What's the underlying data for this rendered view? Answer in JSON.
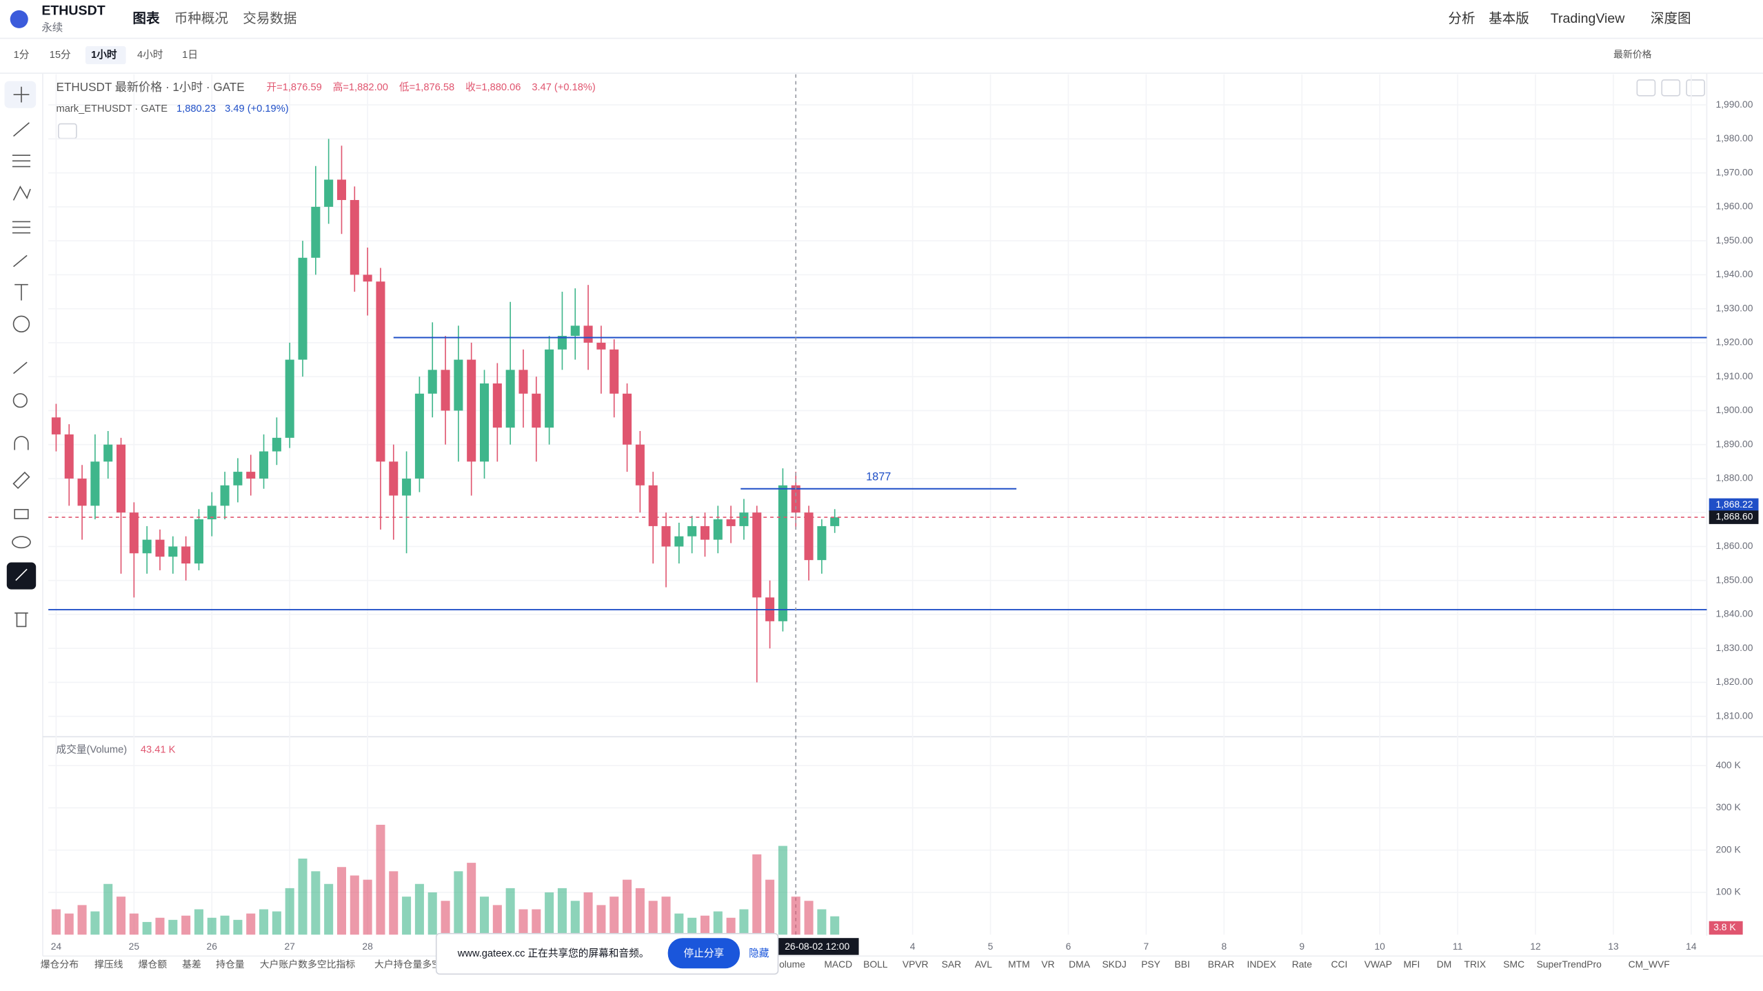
{
  "header": {
    "symbol": "ETHUSDT",
    "subtitle": "永续",
    "tabs": [
      "图表",
      "币种概况",
      "交易数据"
    ],
    "right": [
      "分析",
      "基本版",
      "TradingView",
      "深度图"
    ]
  },
  "toolbar": {
    "intervals": [
      "1分",
      "15分",
      "1小时",
      "4小时",
      "1日"
    ],
    "price_mode": "最新价格"
  },
  "legend": {
    "title": "ETHUSDT 最新价格 · 1小时 · GATE",
    "ohlc": [
      "开=1,876.59",
      "高=1,882.00",
      "低=1,876.58",
      "收=1,880.06",
      "3.47 (+0.18%)"
    ],
    "mark_name": "mark_ETHUSDT · GATE",
    "mark_price": "1,880.23",
    "mark_change": "3.49 (+0.19%)"
  },
  "chart_data": [
    {
      "type": "candlestick",
      "up_color": "#3fb68b",
      "down_color": "#e0556f",
      "line_color": "#1f4fc7",
      "x": [
        0,
        4,
        8,
        12,
        16,
        20,
        24,
        28,
        32,
        36,
        40,
        44,
        48,
        52,
        56,
        60,
        64,
        68,
        72,
        76,
        80,
        84,
        88,
        92,
        96,
        100,
        104,
        108,
        112,
        116,
        120,
        124,
        128,
        132,
        136,
        140,
        144,
        148,
        152,
        156,
        160,
        164,
        168,
        172,
        176,
        180,
        184,
        188,
        192,
        196,
        200,
        204,
        208,
        212,
        216,
        220,
        224,
        228,
        232,
        236,
        240
      ],
      "open": [
        1898,
        1893,
        1880,
        1872,
        1885,
        1890,
        1870,
        1858,
        1862,
        1857,
        1860,
        1855,
        1868,
        1872,
        1878,
        1882,
        1880,
        1888,
        1892,
        1915,
        1945,
        1960,
        1968,
        1962,
        1940,
        1938,
        1885,
        1875,
        1880,
        1905,
        1912,
        1900,
        1915,
        1885,
        1908,
        1895,
        1912,
        1905,
        1895,
        1918,
        1922,
        1925,
        1920,
        1918,
        1905,
        1890,
        1878,
        1866,
        1860,
        1863,
        1866,
        1862,
        1868,
        1866,
        1870,
        1845,
        1838,
        1878,
        1870,
        1856,
        1866
      ],
      "high": [
        1902,
        1896,
        1884,
        1893,
        1894,
        1892,
        1873,
        1866,
        1865,
        1863,
        1863,
        1871,
        1876,
        1882,
        1886,
        1887,
        1893,
        1898,
        1920,
        1950,
        1972,
        1980,
        1978,
        1966,
        1948,
        1942,
        1890,
        1888,
        1910,
        1926,
        1922,
        1925,
        1920,
        1912,
        1914,
        1932,
        1918,
        1910,
        1922,
        1935,
        1936,
        1937,
        1925,
        1921,
        1908,
        1894,
        1882,
        1870,
        1867,
        1869,
        1870,
        1872,
        1872,
        1874,
        1872,
        1850,
        1883,
        1882,
        1872,
        1868,
        1871
      ],
      "low": [
        1888,
        1872,
        1862,
        1868,
        1880,
        1852,
        1845,
        1852,
        1853,
        1852,
        1850,
        1853,
        1863,
        1868,
        1873,
        1875,
        1877,
        1884,
        1889,
        1910,
        1940,
        1955,
        1952,
        1935,
        1928,
        1865,
        1862,
        1858,
        1876,
        1898,
        1890,
        1885,
        1875,
        1880,
        1885,
        1890,
        1895,
        1885,
        1890,
        1912,
        1915,
        1912,
        1905,
        1898,
        1882,
        1870,
        1855,
        1848,
        1855,
        1858,
        1857,
        1858,
        1861,
        1862,
        1820,
        1830,
        1835,
        1865,
        1850,
        1852,
        1864
      ],
      "close": [
        1893,
        1880,
        1872,
        1885,
        1890,
        1870,
        1858,
        1862,
        1857,
        1860,
        1855,
        1868,
        1872,
        1878,
        1882,
        1880,
        1888,
        1892,
        1915,
        1945,
        1960,
        1968,
        1962,
        1940,
        1938,
        1885,
        1875,
        1880,
        1905,
        1912,
        1900,
        1915,
        1885,
        1908,
        1895,
        1912,
        1905,
        1895,
        1918,
        1922,
        1925,
        1920,
        1918,
        1905,
        1890,
        1878,
        1866,
        1860,
        1863,
        1866,
        1862,
        1868,
        1866,
        1870,
        1845,
        1838,
        1878,
        1870,
        1856,
        1866,
        1868.6
      ],
      "xlim": [
        -2.4,
        508.8
      ],
      "xticks": [
        {
          "value": 0,
          "label": "24"
        },
        {
          "value": 24,
          "label": "25"
        },
        {
          "value": 48,
          "label": "26"
        },
        {
          "value": 72,
          "label": "27"
        },
        {
          "value": 96,
          "label": "28"
        },
        {
          "value": 264,
          "label": "4"
        },
        {
          "value": 288,
          "label": "5"
        },
        {
          "value": 312,
          "label": "6"
        },
        {
          "value": 336,
          "label": "7"
        },
        {
          "value": 360,
          "label": "8"
        },
        {
          "value": 384,
          "label": "9"
        },
        {
          "value": 408,
          "label": "10"
        },
        {
          "value": 432,
          "label": "11"
        },
        {
          "value": 456,
          "label": "12"
        },
        {
          "value": 480,
          "label": "13"
        },
        {
          "value": 504,
          "label": "14"
        }
      ],
      "ylim": [
        1804,
        1999
      ],
      "yticks": [
        {
          "value": 1990,
          "label": "1,990.00"
        },
        {
          "value": 1980,
          "label": "1,980.00"
        },
        {
          "value": 1970,
          "label": "1,970.00"
        },
        {
          "value": 1960,
          "label": "1,960.00"
        },
        {
          "value": 1950,
          "label": "1,950.00"
        },
        {
          "value": 1940,
          "label": "1,940.00"
        },
        {
          "value": 1930,
          "label": "1,930.00"
        },
        {
          "value": 1920,
          "label": "1,920.00"
        },
        {
          "value": 1910,
          "label": "1,910.00"
        },
        {
          "value": 1900,
          "label": "1,900.00"
        },
        {
          "value": 1890,
          "label": "1,890.00"
        },
        {
          "value": 1880,
          "label": "1,880.00"
        },
        {
          "value": 1870,
          "label": "1,870.00"
        },
        {
          "value": 1860,
          "label": "1,860.00"
        },
        {
          "value": 1850,
          "label": "1,850.00"
        },
        {
          "value": 1840,
          "label": "1,840.00"
        },
        {
          "value": 1830,
          "label": "1,830.00"
        },
        {
          "value": 1820,
          "label": "1,820.00"
        },
        {
          "value": 1810,
          "label": "1,810.00"
        }
      ],
      "hlines": [
        {
          "value": 1921.5,
          "x_start": 104
        },
        {
          "value": 1877,
          "label": "1877",
          "x_start": 211,
          "x_end": 296
        },
        {
          "value": 1841.4
        }
      ],
      "price_labels": [
        {
          "value": 1868.22,
          "label": "1,868.22",
          "color": "#1f4fc7"
        },
        {
          "value": 1868.6,
          "label": "1,868.60",
          "color": "#131722"
        }
      ],
      "crosshair": {
        "value": 228,
        "label": "26-08-02  12:00"
      }
    },
    {
      "type": "bar",
      "title": "成交量(Volume)",
      "current": "43.41 K",
      "last_label": "3.8 K",
      "values": [
        60,
        50,
        70,
        55,
        120,
        90,
        50,
        30,
        40,
        35,
        45,
        60,
        40,
        45,
        35,
        50,
        60,
        55,
        110,
        180,
        150,
        120,
        160,
        140,
        130,
        260,
        150,
        90,
        120,
        100,
        80,
        150,
        170,
        90,
        70,
        110,
        60,
        60,
        100,
        110,
        80,
        100,
        70,
        90,
        130,
        110,
        80,
        90,
        50,
        40,
        45,
        55,
        40,
        60,
        190,
        130,
        210,
        90,
        80,
        60,
        43.41
      ],
      "ylim": [
        0,
        455
      ],
      "yticks": [
        {
          "value": 100,
          "label": "100 K"
        },
        {
          "value": 200,
          "label": "200 K"
        },
        {
          "value": 300,
          "label": "300 K"
        },
        {
          "value": 400,
          "label": "400 K"
        }
      ]
    }
  ],
  "footer": {
    "left": [
      "爆仓分布",
      "撑压线",
      "爆仓额",
      "基差",
      "持仓量",
      "大户账户数多空比指标",
      "大户持仓量多空比"
    ],
    "right": [
      "olume",
      "MACD",
      "BOLL",
      "VPVR",
      "SAR",
      "AVL",
      "MTM",
      "VR",
      "DMA",
      "SKDJ",
      "PSY",
      "BBI",
      "BRAR",
      "INDEX",
      "Rate",
      "CCI",
      "VWAP",
      "MFI",
      "DM",
      "TRIX",
      "SMC",
      "SuperTrendPro",
      "CM_WVF"
    ]
  },
  "popup": {
    "text": "www.gateex.cc 正在共享您的屏幕和音频。",
    "button": "停止分享",
    "hide": "隐藏"
  }
}
